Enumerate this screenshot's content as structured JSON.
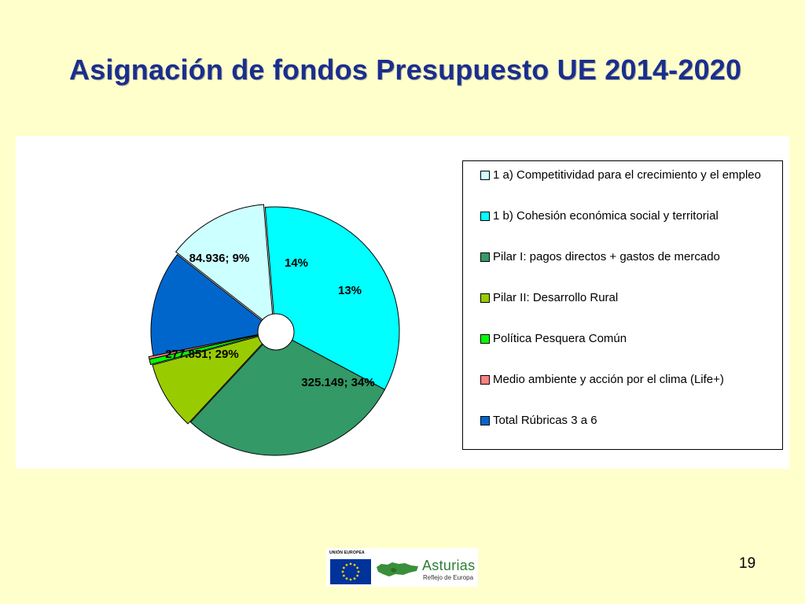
{
  "slide": {
    "title": "Asignación de fondos Presupuesto UE 2014-2020",
    "page_number": "19"
  },
  "footer": {
    "eu_caption": "UNIÓN EUROPEA",
    "brand_name": "Asturias",
    "brand_tagline": "Reflejo de Europa"
  },
  "chart_data": {
    "type": "pie",
    "title": "",
    "legend_position": "right",
    "slices": [
      {
        "name": "1 a) Competitividad para el crecimiento y el empleo",
        "value": 125.614,
        "percent": 13,
        "label": "13%",
        "color": "#CCFFFF"
      },
      {
        "name": "1 b) Cohesión económica social y territorial",
        "value": 325.149,
        "percent": 34,
        "label": "325.149; 34%",
        "color": "#00FFFF"
      },
      {
        "name": "Pilar I: pagos directos + gastos de mercado",
        "value": 277.851,
        "percent": 29,
        "label": "277.851; 29%",
        "color": "#339966"
      },
      {
        "name": "Pilar II: Desarrollo Rural",
        "value": 84.936,
        "percent": 9,
        "label": "84.936; 9%",
        "color": "#99CC00"
      },
      {
        "name": "Política Pesquera Común",
        "value": 6.6,
        "percent": 0.7,
        "label": "",
        "color": "#00FF00"
      },
      {
        "name": "Medio ambiente y acción por el clima (Life+)",
        "value": 3.1,
        "percent": 0.3,
        "label": "",
        "color": "#FF8080"
      },
      {
        "name": "Total Rúbricas 3 a 6",
        "value": 131.0,
        "percent": 14,
        "label": "14%",
        "color": "#0066CC"
      }
    ]
  }
}
